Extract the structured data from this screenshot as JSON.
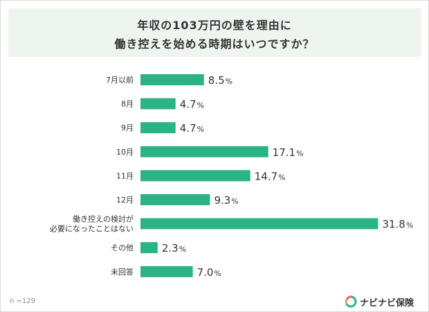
{
  "title": {
    "line1": "年収の103万円の壁を理由に",
    "line2": "働き控えを始める時期はいつですか？"
  },
  "sample": "n =129",
  "brand": {
    "name": "ナビナビ保険",
    "logo_icon": "navinavi-logo-icon"
  },
  "colors": {
    "bar": "#2bb384",
    "title_bg": "#eef5ef"
  },
  "chart_data": {
    "type": "bar",
    "orientation": "horizontal",
    "categories": [
      [
        "7月以前"
      ],
      [
        "8月"
      ],
      [
        "9月"
      ],
      [
        "10月"
      ],
      [
        "11月"
      ],
      [
        "12月"
      ],
      [
        "働き控えの検討が",
        "必要になったことはない"
      ],
      [
        "その他"
      ],
      [
        "未回答"
      ]
    ],
    "values": [
      8.5,
      4.7,
      4.7,
      17.1,
      14.7,
      9.3,
      31.8,
      2.3,
      7.0
    ],
    "value_labels": [
      "8.5",
      "4.7",
      "4.7",
      "17.1",
      "14.7",
      "9.3",
      "31.8",
      "2.3",
      "7.0"
    ],
    "unit": "%",
    "title": "年収の103万円の壁を理由に 働き控えを始める時期はいつですか？",
    "xlabel": "",
    "ylabel": "",
    "grid": false
  }
}
